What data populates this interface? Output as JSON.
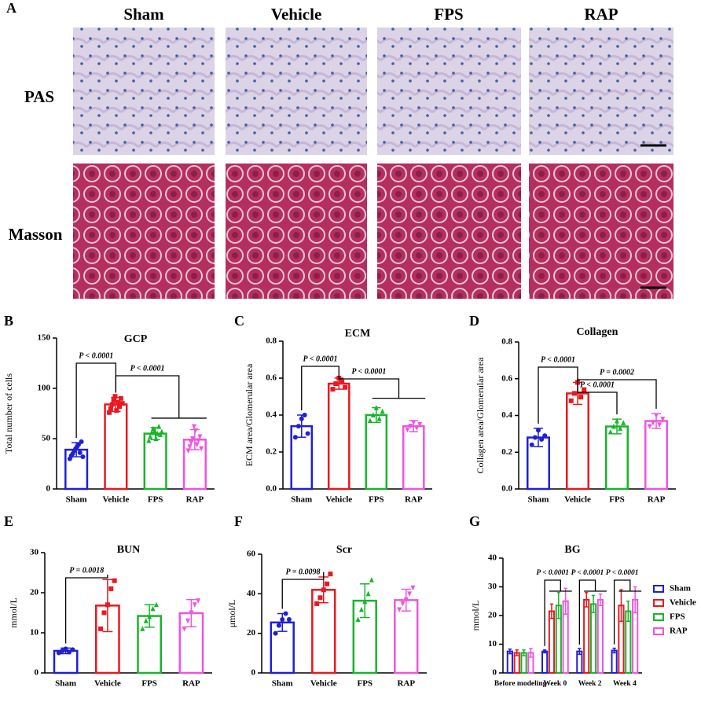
{
  "figure_a": {
    "panel": "A",
    "columns": [
      "Sham",
      "Vehicle",
      "FPS",
      "RAP"
    ],
    "rows": [
      "PAS",
      "Masson"
    ]
  },
  "chart_data": [
    {
      "type": "bar",
      "panel": "B",
      "title": "GCP",
      "ylabel": "Total number of cells",
      "categories": [
        "Sham",
        "Vehicle",
        "FPS",
        "RAP"
      ],
      "colors": [
        "#1f1fd6",
        "#e8191f",
        "#18b52a",
        "#ee55dd"
      ],
      "values": [
        39,
        84,
        55,
        49
      ],
      "errors": [
        7,
        7,
        6,
        10
      ],
      "points": [
        [
          30,
          33,
          35,
          38,
          40,
          42,
          44,
          36,
          47,
          32
        ],
        [
          76,
          80,
          84,
          88,
          92,
          78,
          86,
          82,
          90,
          85
        ],
        [
          48,
          52,
          56,
          60,
          58,
          50,
          55,
          62,
          54,
          57
        ],
        [
          38,
          42,
          46,
          50,
          62,
          58,
          44,
          48,
          52,
          40
        ]
      ],
      "ylim": [
        0,
        150
      ],
      "yticks": [
        0,
        50,
        100,
        150
      ],
      "comparisons": [
        {
          "label": "P < 0.0001",
          "groups": [
            "Sham",
            "Vehicle"
          ]
        },
        {
          "label": "P < 0.0001",
          "groups": [
            "Vehicle",
            "FPS",
            "RAP"
          ]
        }
      ]
    },
    {
      "type": "bar",
      "panel": "C",
      "title": "ECM",
      "ylabel": "ECM area/Glomerular area",
      "categories": [
        "Sham",
        "Vehicle",
        "FPS",
        "RAP"
      ],
      "colors": [
        "#1f1fd6",
        "#e8191f",
        "#18b52a",
        "#ee55dd"
      ],
      "values": [
        0.34,
        0.57,
        0.4,
        0.34
      ],
      "errors": [
        0.06,
        0.03,
        0.04,
        0.03
      ],
      "points": [
        [
          0.28,
          0.34,
          0.38,
          0.4,
          0.3
        ],
        [
          0.54,
          0.57,
          0.6,
          0.58,
          0.55
        ],
        [
          0.37,
          0.4,
          0.44,
          0.38,
          0.42
        ],
        [
          0.32,
          0.34,
          0.36,
          0.33,
          0.35
        ]
      ],
      "ylim": [
        0,
        0.8
      ],
      "yticks": [
        {
          "value": 0,
          "label": "0.0"
        },
        0.2,
        0.4,
        0.6,
        0.8
      ],
      "comparisons": [
        {
          "label": "P < 0.0001",
          "groups": [
            "Sham",
            "Vehicle"
          ]
        },
        {
          "label": "P < 0.0001",
          "groups": [
            "Vehicle",
            "FPS",
            "RAP"
          ]
        }
      ]
    },
    {
      "type": "bar",
      "panel": "D",
      "title": "Collagen",
      "ylabel": "Collagen area/Glomerular area",
      "categories": [
        "Sham",
        "Vehicle",
        "FPS",
        "RAP"
      ],
      "colors": [
        "#1f1fd6",
        "#e8191f",
        "#18b52a",
        "#ee55dd"
      ],
      "values": [
        0.28,
        0.52,
        0.34,
        0.37
      ],
      "errors": [
        0.05,
        0.06,
        0.04,
        0.04
      ],
      "points": [
        [
          0.24,
          0.28,
          0.32,
          0.27,
          0.29
        ],
        [
          0.48,
          0.52,
          0.58,
          0.5,
          0.54
        ],
        [
          0.31,
          0.34,
          0.37,
          0.33,
          0.36
        ],
        [
          0.34,
          0.36,
          0.4,
          0.35,
          0.38
        ]
      ],
      "ylim": [
        0,
        0.8
      ],
      "yticks": [
        {
          "value": 0,
          "label": "0.0"
        },
        0.2,
        0.4,
        0.6,
        0.8
      ],
      "comparisons": [
        {
          "label": "P < 0.0001",
          "groups": [
            "Sham",
            "Vehicle"
          ]
        },
        {
          "label": "P = 0.0002",
          "groups": [
            "Vehicle",
            "RAP"
          ]
        },
        {
          "label": "P < 0.0001",
          "groups": [
            "Vehicle",
            "FPS"
          ]
        }
      ]
    },
    {
      "type": "bar",
      "panel": "E",
      "title": "BUN",
      "ylabel": "mmol/L",
      "categories": [
        "Sham",
        "Vehicle",
        "FPS",
        "RAP"
      ],
      "colors": [
        "#1f1fd6",
        "#e8191f",
        "#18b52a",
        "#ee55dd"
      ],
      "values": [
        5.5,
        16.8,
        14.2,
        14.9
      ],
      "errors": [
        0.7,
        6.5,
        2.8,
        3.4
      ],
      "points": [
        [
          5,
          5.5,
          6,
          5.2,
          5.8
        ],
        [
          11,
          15,
          17,
          21,
          23
        ],
        [
          11,
          13,
          14,
          16,
          17
        ],
        [
          11,
          13,
          15,
          17,
          18
        ]
      ],
      "ylim": [
        0,
        30
      ],
      "yticks": [
        0,
        10,
        20,
        30
      ],
      "comparisons": [
        {
          "label": "P = 0.0018",
          "groups": [
            "Sham",
            "Vehicle"
          ]
        }
      ]
    },
    {
      "type": "bar",
      "panel": "F",
      "title": "Scr",
      "ylabel": "μmol/L",
      "categories": [
        "Sham",
        "Vehicle",
        "FPS",
        "RAP"
      ],
      "colors": [
        "#1f1fd6",
        "#e8191f",
        "#18b52a",
        "#ee55dd"
      ],
      "values": [
        25.5,
        42,
        36.5,
        36.8
      ],
      "errors": [
        4.5,
        6.5,
        8.5,
        5.5
      ],
      "points": [
        [
          20,
          24,
          27,
          30,
          27
        ],
        [
          35,
          38,
          42,
          45,
          50
        ],
        [
          27,
          32,
          36,
          40,
          47
        ],
        [
          32,
          35,
          37,
          40,
          43
        ]
      ],
      "ylim": [
        0,
        60
      ],
      "yticks": [
        0,
        20,
        40,
        60
      ],
      "comparisons": [
        {
          "label": "P = 0.0098",
          "groups": [
            "Sham",
            "Vehicle"
          ]
        }
      ]
    },
    {
      "type": "grouped-bar",
      "panel": "G",
      "title": "BG",
      "ylabel": "mmol/L",
      "categories": [
        "Before modeling",
        "Week 0",
        "Week 2",
        "Week 4"
      ],
      "series": [
        {
          "name": "Sham",
          "color": "#1f1fd6",
          "values": [
            7.5,
            7.5,
            7.5,
            7.8
          ],
          "errors": [
            0.8,
            0.5,
            1,
            0.8
          ]
        },
        {
          "name": "Vehicle",
          "color": "#e8191f",
          "values": [
            7,
            21.5,
            25.5,
            23.5
          ],
          "errors": [
            1,
            2.5,
            2.5,
            5.5
          ]
        },
        {
          "name": "FPS",
          "color": "#18b52a",
          "values": [
            7,
            23.5,
            24,
            21.5
          ],
          "errors": [
            1,
            4.5,
            3,
            3.5
          ]
        },
        {
          "name": "RAP",
          "color": "#ee55dd",
          "values": [
            7,
            25,
            25.5,
            25.5
          ],
          "errors": [
            1.5,
            4.5,
            2,
            4.5
          ]
        }
      ],
      "ylim": [
        0,
        40
      ],
      "yticks": [
        0,
        10,
        20,
        30,
        40
      ],
      "comparisons": [
        {
          "label": "P < 0.0001",
          "category": "Week 0"
        },
        {
          "label": "P < 0.0001",
          "category": "Week 2"
        },
        {
          "label": "P < 0.0001",
          "category": "Week 4"
        }
      ]
    }
  ]
}
